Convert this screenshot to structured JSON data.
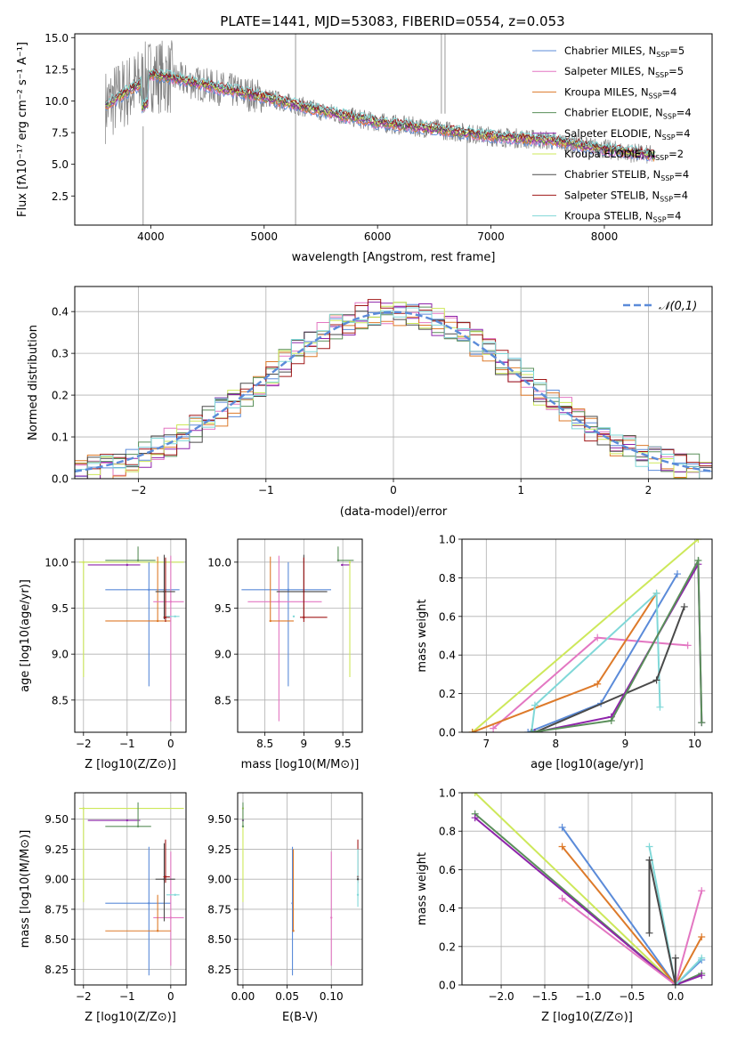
{
  "figure_title": "PLATE=1441, MJD=53083, FIBERID=0554, z=0.053",
  "colors": {
    "chabrier_miles": "#5b8bd9",
    "salpeter_miles": "#e377c2",
    "kroupa_miles": "#dd7a2a",
    "chabrier_elodie": "#5a8f5a",
    "salpeter_elodie": "#8e24aa",
    "kroupa_elodie": "#cde85a",
    "chabrier_stelib": "#4a4a4a",
    "salpeter_stelib": "#a01818",
    "kroupa_stelib": "#80d8d8",
    "data": "#808080",
    "normal": "#5b8bd9"
  },
  "legend_models": [
    "Chabrier MILES, N_SSP=5",
    "Salpeter MILES, N_SSP=5",
    "Kroupa MILES, N_SSP=4",
    "Chabrier ELODIE, N_SSP=4",
    "Salpeter ELODIE, N_SSP=4",
    "Kroupa ELODIE, N_SSP=2",
    "Chabrier STELIB, N_SSP=4",
    "Salpeter STELIB, N_SSP=4",
    "Kroupa STELIB, N_SSP=4"
  ],
  "chart_data": [
    {
      "panel": "spectrum",
      "type": "line",
      "xlabel": "wavelength [Angstrom, rest frame]",
      "ylabel": "Flux [f_λ 10^-17 erg cm^-2 s^-1 A^-1]",
      "xlim": [
        3330,
        8950
      ],
      "ylim": [
        0.2,
        15.3
      ],
      "xticks": [
        4000,
        5000,
        6000,
        7000,
        8000
      ],
      "yticks": [
        2.5,
        5.0,
        7.5,
        10.0,
        12.5,
        15.0
      ],
      "ytick_labels": [
        "2.5",
        "5.0",
        "7.5",
        "10.0",
        "12.5",
        "15.0"
      ],
      "model_continuum": {
        "x": [
          3600,
          3700,
          3800,
          3900,
          4000,
          4200,
          4500,
          5000,
          5500,
          6000,
          6500,
          7000,
          7500,
          8000,
          8500
        ],
        "y": [
          9.6,
          10.2,
          10.8,
          11.3,
          12.1,
          11.8,
          11.2,
          10.3,
          9.2,
          8.3,
          7.8,
          7.2,
          6.9,
          6.2,
          5.6
        ]
      },
      "grid": false,
      "legend_placement": "top-right"
    },
    {
      "panel": "residual_distribution",
      "type": "line",
      "xlabel": "(data-model)/error",
      "ylabel": "Normed distribution",
      "xlim": [
        -2.5,
        2.5
      ],
      "ylim": [
        0,
        0.46
      ],
      "xticks": [
        -2,
        -1,
        0,
        1,
        2
      ],
      "yticks": [
        0.0,
        0.1,
        0.2,
        0.3,
        0.4
      ],
      "ytick_labels": [
        "0.0",
        "0.1",
        "0.2",
        "0.3",
        "0.4"
      ],
      "reference_curve": "N(0,1)",
      "legend": "𝒩(0,1)",
      "grid": true,
      "legend_placement": "top-right"
    },
    {
      "panel": "age_vs_Z",
      "type": "scatter",
      "xlabel": "Z [log10(Z/Z⊙)]",
      "ylabel": "age  [log10(age/yr)]",
      "xlim": [
        -2.2,
        0.35
      ],
      "ylim": [
        8.15,
        10.25
      ],
      "xticks": [
        -2,
        -1,
        0
      ],
      "yticks": [
        8.5,
        9.0,
        9.5,
        10.0
      ],
      "ytick_labels": [
        "8.5",
        "9.0",
        "9.5",
        "10.0"
      ],
      "points": [
        {
          "series": "kroupa_elodie",
          "x": -2.0,
          "y": 10.0,
          "xerr": [
            0.1,
            2.3
          ],
          "yerr": [
            1.25,
            0.0
          ]
        },
        {
          "series": "salpeter_elodie",
          "x": -1.0,
          "y": 9.97,
          "xerr": [
            0.9,
            0.3
          ],
          "yerr": [
            0.0,
            0.0
          ]
        },
        {
          "series": "chabrier_elodie",
          "x": -0.75,
          "y": 10.02,
          "xerr": [
            0.75,
            0.4
          ],
          "yerr": [
            0.0,
            0.15
          ]
        },
        {
          "series": "chabrier_miles",
          "x": -0.5,
          "y": 9.7,
          "xerr": [
            1.0,
            0.7
          ],
          "yerr": [
            1.05,
            0.3
          ]
        },
        {
          "series": "kroupa_miles",
          "x": -0.3,
          "y": 9.36,
          "xerr": [
            1.2,
            0.3
          ],
          "yerr": [
            0.0,
            0.7
          ]
        },
        {
          "series": "salpeter_miles",
          "x": 0.0,
          "y": 9.57,
          "xerr": [
            0.4,
            0.3
          ],
          "yerr": [
            1.3,
            0.5
          ]
        },
        {
          "series": "chabrier_stelib",
          "x": -0.15,
          "y": 9.68,
          "xerr": [
            0.2,
            0.25
          ],
          "yerr": [
            0.3,
            0.4
          ]
        },
        {
          "series": "salpeter_stelib",
          "x": -0.12,
          "y": 9.4,
          "xerr": [
            0.05,
            0.1
          ],
          "yerr": [
            0.05,
            0.65
          ]
        },
        {
          "series": "kroupa_stelib",
          "x": 0.1,
          "y": 9.41,
          "xerr": [
            0.2,
            0.1
          ],
          "yerr": [
            0.0,
            0.0
          ]
        }
      ]
    },
    {
      "panel": "age_vs_mass",
      "type": "scatter",
      "xlabel": "mass [log10(M/M⊙)]",
      "ylabel": "",
      "xlim": [
        8.15,
        9.75
      ],
      "ylim": [
        8.15,
        10.25
      ],
      "xticks": [
        8.5,
        9.0,
        9.5
      ],
      "yticks": [
        8.5,
        9.0,
        9.5,
        10.0
      ],
      "ytick_labels": [
        "8.5",
        "9.0",
        "9.5",
        "10.0"
      ],
      "points": [
        {
          "series": "chabrier_miles",
          "x": 8.8,
          "y": 9.7,
          "xerr": [
            0.6,
            0.55
          ],
          "yerr": [
            1.05,
            0.3
          ]
        },
        {
          "series": "salpeter_miles",
          "x": 8.68,
          "y": 9.57,
          "xerr": [
            0.4,
            0.55
          ],
          "yerr": [
            1.3,
            0.5
          ]
        },
        {
          "series": "kroupa_miles",
          "x": 8.57,
          "y": 9.36,
          "xerr": [
            0.0,
            0.3
          ],
          "yerr": [
            0.0,
            0.7
          ]
        },
        {
          "series": "chabrier_stelib",
          "x": 9.0,
          "y": 9.68,
          "xerr": [
            0.35,
            0.3
          ],
          "yerr": [
            0.3,
            0.4
          ]
        },
        {
          "series": "salpeter_stelib",
          "x": 9.0,
          "y": 9.4,
          "xerr": [
            0.05,
            0.3
          ],
          "yerr": [
            0.05,
            0.65
          ]
        },
        {
          "series": "kroupa_stelib",
          "x": 8.87,
          "y": 9.41,
          "xerr": [
            0.0,
            0.0
          ],
          "yerr": [
            0.0,
            0.0
          ]
        },
        {
          "series": "salpeter_elodie",
          "x": 9.49,
          "y": 9.97,
          "xerr": [
            0.0,
            0.1
          ],
          "yerr": [
            0.0,
            0.0
          ]
        },
        {
          "series": "chabrier_elodie",
          "x": 9.44,
          "y": 10.02,
          "xerr": [
            0.0,
            0.2
          ],
          "yerr": [
            0.0,
            0.15
          ]
        },
        {
          "series": "kroupa_elodie",
          "x": 9.59,
          "y": 10.0,
          "xerr": [
            0.0,
            0.0
          ],
          "yerr": [
            1.25,
            0.0
          ]
        }
      ]
    },
    {
      "panel": "mass_weight_vs_age",
      "type": "line",
      "xlabel": "age  [log10(age/yr)]",
      "ylabel": "mass weight",
      "xlim": [
        6.65,
        10.25
      ],
      "ylim": [
        0,
        1.0
      ],
      "xticks": [
        7,
        8,
        9,
        10
      ],
      "yticks": [
        0.0,
        0.2,
        0.4,
        0.6,
        0.8,
        1.0
      ],
      "ytick_labels": [
        "0.0",
        "0.2",
        "0.4",
        "0.6",
        "0.8",
        "1.0"
      ],
      "series": [
        {
          "key": "kroupa_elodie",
          "x": [
            6.8,
            10.05
          ],
          "y": [
            0.0,
            1.0
          ]
        },
        {
          "key": "salpeter_miles",
          "x": [
            7.1,
            8.6,
            9.9
          ],
          "y": [
            0.02,
            0.49,
            0.45
          ]
        },
        {
          "key": "kroupa_miles",
          "x": [
            6.8,
            8.6,
            9.45
          ],
          "y": [
            0.0,
            0.25,
            0.72
          ]
        },
        {
          "key": "chabrier_miles",
          "x": [
            7.6,
            8.65,
            9.75
          ],
          "y": [
            0.0,
            0.15,
            0.82
          ]
        },
        {
          "key": "kroupa_stelib",
          "x": [
            7.65,
            7.7,
            9.45,
            9.5
          ],
          "y": [
            0.0,
            0.14,
            0.72,
            0.13
          ]
        },
        {
          "key": "chabrier_stelib",
          "x": [
            7.7,
            9.45,
            9.85
          ],
          "y": [
            0.0,
            0.27,
            0.65
          ]
        },
        {
          "key": "salpeter_elodie",
          "x": [
            7.7,
            8.8,
            10.05,
            10.1
          ],
          "y": [
            0.0,
            0.08,
            0.87,
            0.05
          ]
        },
        {
          "key": "chabrier_elodie",
          "x": [
            7.65,
            8.8,
            10.05,
            10.1
          ],
          "y": [
            0.0,
            0.06,
            0.89,
            0.05
          ]
        }
      ]
    },
    {
      "panel": "mass_vs_Z",
      "type": "scatter",
      "xlabel": "Z [log10(Z/Z⊙)]",
      "ylabel": "mass [log10(M/M⊙)]",
      "xlim": [
        -2.2,
        0.35
      ],
      "ylim": [
        8.12,
        9.72
      ],
      "xticks": [
        -2,
        -1,
        0
      ],
      "yticks": [
        8.25,
        8.5,
        8.75,
        9.0,
        9.25,
        9.5
      ],
      "ytick_labels": [
        "8.25",
        "8.50",
        "8.75",
        "9.00",
        "9.25",
        "9.50"
      ],
      "points": [
        {
          "series": "kroupa_elodie",
          "x": -2.0,
          "y": 9.59,
          "xerr": [
            0.1,
            2.3
          ],
          "yerr": [
            0.78,
            0.0
          ]
        },
        {
          "series": "salpeter_elodie",
          "x": -1.0,
          "y": 9.49,
          "xerr": [
            0.9,
            0.3
          ],
          "yerr": [
            0.0,
            0.0
          ]
        },
        {
          "series": "chabrier_elodie",
          "x": -0.75,
          "y": 9.44,
          "xerr": [
            0.75,
            0.3
          ],
          "yerr": [
            0.0,
            0.2
          ]
        },
        {
          "series": "chabrier_miles",
          "x": -0.5,
          "y": 8.8,
          "xerr": [
            1.0,
            0.5
          ],
          "yerr": [
            0.6,
            0.47
          ]
        },
        {
          "series": "salpeter_miles",
          "x": 0.0,
          "y": 8.68,
          "xerr": [
            0.4,
            0.3
          ],
          "yerr": [
            0.4,
            0.55
          ]
        },
        {
          "series": "kroupa_miles",
          "x": -0.3,
          "y": 8.57,
          "xerr": [
            1.2,
            0.3
          ],
          "yerr": [
            0.0,
            0.3
          ]
        },
        {
          "series": "chabrier_stelib",
          "x": -0.15,
          "y": 9.0,
          "xerr": [
            0.2,
            0.25
          ],
          "yerr": [
            0.35,
            0.3
          ]
        },
        {
          "series": "salpeter_stelib",
          "x": -0.12,
          "y": 9.02,
          "xerr": [
            0.05,
            0.1
          ],
          "yerr": [
            0.05,
            0.31
          ]
        },
        {
          "series": "kroupa_stelib",
          "x": 0.1,
          "y": 8.87,
          "xerr": [
            0.2,
            0.1
          ],
          "yerr": [
            0.0,
            0.0
          ]
        }
      ]
    },
    {
      "panel": "mass_vs_EBV",
      "type": "scatter",
      "xlabel": "E(B-V)",
      "ylabel": "",
      "xlim": [
        -0.006,
        0.135
      ],
      "ylim": [
        8.12,
        9.72
      ],
      "xticks": [
        0.0,
        0.05,
        0.1
      ],
      "xtick_labels": [
        "0.00",
        "0.05",
        "0.10"
      ],
      "yticks": [
        8.25,
        8.5,
        8.75,
        9.0,
        9.25,
        9.5
      ],
      "ytick_labels": [
        "8.25",
        "8.50",
        "8.75",
        "9.00",
        "9.25",
        "9.50"
      ],
      "points": [
        {
          "series": "kroupa_elodie",
          "x": 0.0,
          "y": 9.59,
          "yerr": [
            0.78,
            0.0
          ]
        },
        {
          "series": "salpeter_elodie",
          "x": 0.0,
          "y": 9.49,
          "yerr": [
            0.0,
            0.0
          ]
        },
        {
          "series": "chabrier_elodie",
          "x": 0.0,
          "y": 9.44,
          "yerr": [
            0.0,
            0.2
          ]
        },
        {
          "series": "chabrier_miles",
          "x": 0.056,
          "y": 8.8,
          "yerr": [
            0.6,
            0.47
          ]
        },
        {
          "series": "kroupa_miles",
          "x": 0.057,
          "y": 8.57,
          "yerr": [
            0.0,
            0.68
          ]
        },
        {
          "series": "salpeter_miles",
          "x": 0.1,
          "y": 8.68,
          "yerr": [
            0.4,
            0.55
          ]
        },
        {
          "series": "salpeter_stelib",
          "x": 0.13,
          "y": 9.02,
          "yerr": [
            0.05,
            0.31
          ]
        },
        {
          "series": "kroupa_stelib",
          "x": 0.13,
          "y": 8.87,
          "yerr": [
            0.1,
            0.38
          ]
        },
        {
          "series": "chabrier_stelib",
          "x": 0.13,
          "y": 9.0,
          "yerr": [
            0.0,
            0.0
          ]
        }
      ]
    },
    {
      "panel": "mass_weight_vs_Z",
      "type": "line",
      "xlabel": "Z [log10(Z/Z⊙)]",
      "ylabel": "mass weight",
      "xlim": [
        -2.45,
        0.42
      ],
      "ylim": [
        0,
        1.0
      ],
      "xticks": [
        -2.0,
        -1.5,
        -1.0,
        -0.5,
        0.0
      ],
      "xtick_labels": [
        "−2.0",
        "−1.5",
        "−1.0",
        "−0.5",
        "0.0"
      ],
      "yticks": [
        0.0,
        0.2,
        0.4,
        0.6,
        0.8,
        1.0
      ],
      "ytick_labels": [
        "0.0",
        "0.2",
        "0.4",
        "0.6",
        "0.8",
        "1.0"
      ],
      "series": [
        {
          "key": "kroupa_elodie",
          "x": [
            -2.3,
            0.0
          ],
          "y": [
            1.0,
            0.0
          ]
        },
        {
          "key": "chabrier_elodie",
          "x": [
            -2.3,
            0.0,
            0.3
          ],
          "y": [
            0.89,
            0.0,
            0.06
          ]
        },
        {
          "key": "salpeter_elodie",
          "x": [
            -2.3,
            0.0,
            0.3
          ],
          "y": [
            0.87,
            0.0,
            0.05
          ]
        },
        {
          "key": "chabrier_miles",
          "x": [
            -1.3,
            0.0,
            0.3
          ],
          "y": [
            0.82,
            0.0,
            0.13
          ]
        },
        {
          "key": "kroupa_miles",
          "x": [
            -1.3,
            0.0,
            0.3
          ],
          "y": [
            0.72,
            0.0,
            0.25
          ]
        },
        {
          "key": "salpeter_miles",
          "x": [
            -1.3,
            0.0,
            0.3
          ],
          "y": [
            0.45,
            0.0,
            0.49
          ]
        },
        {
          "key": "kroupa_stelib",
          "x": [
            -0.3,
            0.0,
            0.3
          ],
          "y": [
            0.72,
            0.0,
            0.14
          ]
        },
        {
          "key": "chabrier_stelib",
          "x": [
            -0.3,
            -0.3,
            0.0,
            0.0
          ],
          "y": [
            0.27,
            0.65,
            0.0,
            0.14
          ]
        }
      ]
    }
  ]
}
